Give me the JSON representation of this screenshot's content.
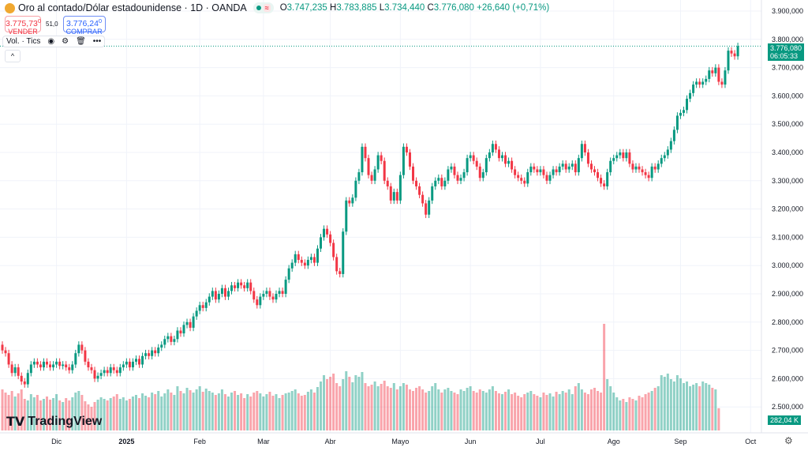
{
  "header": {
    "symbol": "Oro al contado/Dólar estadounidense · 1D · OANDA",
    "open_label": "O",
    "open": "3.747,235",
    "high_label": "H",
    "high": "3.783,885",
    "low_label": "L",
    "low": "3.734,440",
    "close_label": "C",
    "close": "3.776,080",
    "change": "+26,640 (+0,71%)",
    "market_badge": "≈"
  },
  "trade": {
    "sell_price": "3.775,73",
    "sell_sup": "0",
    "sell_label": "VENDER",
    "spread": "51,0",
    "buy_price": "3.776,24",
    "buy_sup": "0",
    "buy_label": "COMPRAR"
  },
  "indicator": {
    "label": "Vol. · Tics",
    "icons": [
      "eye-icon",
      "settings-icon",
      "trash-icon",
      "more-icon"
    ]
  },
  "collapse_icon": "chevron-up-icon",
  "logo": "TradingView",
  "price_tag": {
    "price": "3.776,080",
    "countdown": "06:05:33"
  },
  "volume_tag": "282,04 K",
  "colors": {
    "up": "#089981",
    "down": "#f23645"
  },
  "chart_data": {
    "type": "candlestick",
    "y_ticks": [
      "3.900,000",
      "3.800,000",
      "3.700,000",
      "3.600,000",
      "3.500,000",
      "3.400,000",
      "3.300,000",
      "3.200,000",
      "3.100,000",
      "3.000,000",
      "2.900,000",
      "2.800,000",
      "2.700,000",
      "2.600,000",
      "2.500,000"
    ],
    "y_tick_values": [
      3900,
      3800,
      3700,
      3600,
      3500,
      3400,
      3300,
      3200,
      3100,
      3000,
      2900,
      2800,
      2700,
      2600,
      2500
    ],
    "x_ticks": [
      "Dic",
      "2025",
      "Feb",
      "Mar",
      "Abr",
      "Mayo",
      "Jun",
      "Jul",
      "Ago",
      "Sep",
      "Oct"
    ],
    "x_tick_index": [
      17,
      39,
      62,
      82,
      103,
      125,
      147,
      169,
      192,
      213,
      235
    ],
    "grid": true,
    "first_open": 2720,
    "closes": [
      2700,
      2690,
      2650,
      2620,
      2640,
      2610,
      2590,
      2580,
      2620,
      2650,
      2660,
      2650,
      2640,
      2660,
      2650,
      2640,
      2650,
      2660,
      2645,
      2650,
      2640,
      2630,
      2650,
      2690,
      2720,
      2700,
      2660,
      2640,
      2630,
      2600,
      2610,
      2620,
      2630,
      2620,
      2640,
      2630,
      2620,
      2640,
      2650,
      2660,
      2640,
      2660,
      2670,
      2650,
      2680,
      2690,
      2680,
      2700,
      2690,
      2710,
      2720,
      2740,
      2750,
      2730,
      2740,
      2770,
      2760,
      2790,
      2800,
      2780,
      2820,
      2840,
      2860,
      2850,
      2870,
      2890,
      2910,
      2880,
      2900,
      2920,
      2890,
      2910,
      2930,
      2920,
      2940,
      2930,
      2920,
      2940,
      2910,
      2880,
      2860,
      2890,
      2900,
      2910,
      2890,
      2880,
      2900,
      2910,
      2900,
      2950,
      2990,
      3010,
      3040,
      3020,
      3010,
      3000,
      3020,
      3030,
      3010,
      3060,
      3100,
      3130,
      3110,
      3080,
      3030,
      2980,
      2970,
      3120,
      3230,
      3220,
      3240,
      3300,
      3330,
      3420,
      3380,
      3320,
      3300,
      3340,
      3390,
      3370,
      3300,
      3280,
      3230,
      3260,
      3230,
      3320,
      3420,
      3400,
      3350,
      3300,
      3280,
      3250,
      3220,
      3180,
      3230,
      3280,
      3300,
      3310,
      3280,
      3300,
      3340,
      3350,
      3320,
      3300,
      3310,
      3330,
      3380,
      3390,
      3370,
      3350,
      3310,
      3330,
      3380,
      3400,
      3430,
      3410,
      3380,
      3390,
      3360,
      3370,
      3340,
      3320,
      3310,
      3300,
      3290,
      3330,
      3350,
      3340,
      3330,
      3340,
      3320,
      3300,
      3320,
      3340,
      3330,
      3350,
      3360,
      3340,
      3350,
      3360,
      3330,
      3380,
      3430,
      3400,
      3360,
      3340,
      3330,
      3310,
      3290,
      3280,
      3330,
      3370,
      3380,
      3390,
      3400,
      3380,
      3400,
      3360,
      3340,
      3350,
      3340,
      3330,
      3320,
      3310,
      3350,
      3340,
      3360,
      3380,
      3390,
      3410,
      3440,
      3480,
      3530,
      3540,
      3550,
      3590,
      3610,
      3640,
      3650,
      3640,
      3650,
      3660,
      3690,
      3680,
      3700,
      3650,
      3640,
      3690,
      3760,
      3750,
      3740,
      3776
    ],
    "volumes_k": [
      520,
      480,
      450,
      500,
      430,
      470,
      520,
      400,
      380,
      460,
      420,
      450,
      380,
      400,
      430,
      390,
      410,
      460,
      380,
      360,
      410,
      380,
      420,
      480,
      500,
      450,
      370,
      330,
      300,
      360,
      390,
      420,
      400,
      380,
      410,
      430,
      460,
      400,
      420,
      380,
      400,
      430,
      450,
      410,
      470,
      440,
      420,
      480,
      460,
      500,
      430,
      470,
      520,
      480,
      450,
      560,
      500,
      470,
      540,
      510,
      480,
      520,
      560,
      490,
      530,
      500,
      480,
      450,
      470,
      520,
      460,
      430,
      480,
      500,
      450,
      470,
      410,
      460,
      430,
      480,
      500,
      470,
      430,
      460,
      490,
      440,
      460,
      410,
      450,
      470,
      480,
      500,
      520,
      470,
      440,
      450,
      490,
      520,
      480,
      550,
      620,
      700,
      650,
      680,
      720,
      600,
      560,
      650,
      750,
      680,
      610,
      700,
      680,
      740,
      600,
      560,
      580,
      620,
      560,
      590,
      630,
      560,
      540,
      600,
      520,
      560,
      600,
      580,
      520,
      500,
      540,
      560,
      520,
      480,
      500,
      560,
      600,
      520,
      480,
      520,
      540,
      500,
      480,
      460,
      520,
      500,
      540,
      560,
      500,
      480,
      520,
      500,
      480,
      520,
      560,
      500,
      470,
      460,
      490,
      520,
      460,
      480,
      440,
      420,
      460,
      480,
      500,
      460,
      440,
      420,
      480,
      450,
      470,
      430,
      490,
      460,
      500,
      480,
      520,
      460,
      560,
      600,
      520,
      480,
      460,
      520,
      540,
      500,
      480,
      1350,
      650,
      560,
      480,
      420,
      380,
      400,
      360,
      420,
      400,
      380,
      440,
      420,
      460,
      480,
      500,
      540,
      560,
      700,
      680,
      720,
      650,
      620,
      700,
      660,
      600,
      620,
      560,
      580,
      600,
      560,
      620,
      600,
      580,
      540,
      520,
      282
    ]
  }
}
